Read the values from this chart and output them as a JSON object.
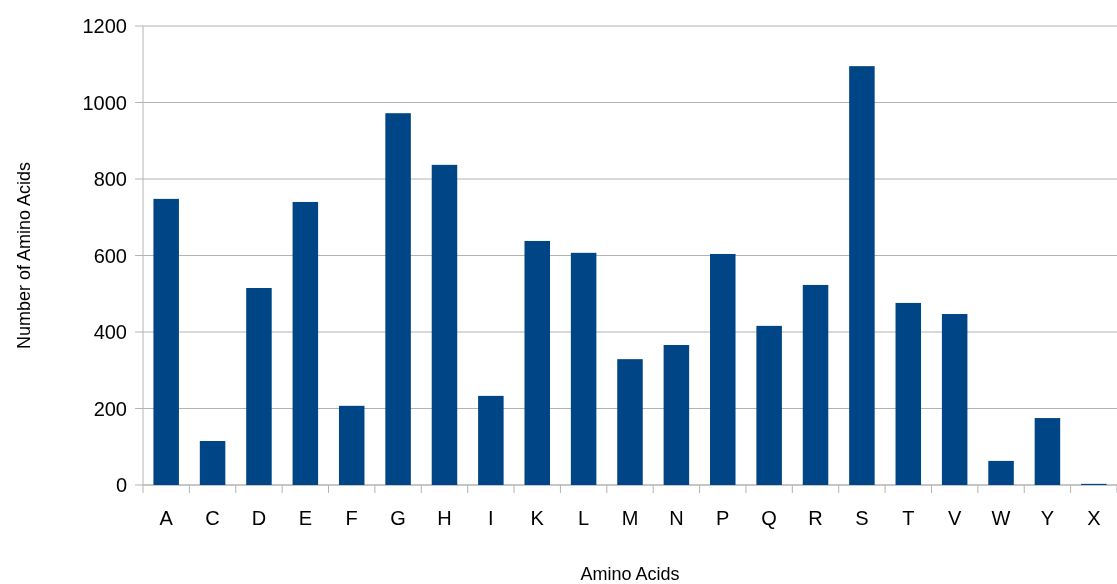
{
  "chart_data": {
    "type": "bar",
    "xlabel": "Amino Acids",
    "ylabel": "Number of Amino Acids",
    "categories": [
      "A",
      "C",
      "D",
      "E",
      "F",
      "G",
      "H",
      "I",
      "K",
      "L",
      "M",
      "N",
      "P",
      "Q",
      "R",
      "S",
      "T",
      "V",
      "W",
      "Y",
      "X"
    ],
    "values": [
      748,
      115,
      515,
      740,
      207,
      972,
      837,
      233,
      638,
      607,
      329,
      366,
      604,
      416,
      523,
      1095,
      476,
      447,
      63,
      175,
      3
    ],
    "color": "#004586",
    "ylim": [
      0,
      1200
    ],
    "yticks": [
      0,
      200,
      400,
      600,
      800,
      1000,
      1200
    ],
    "grid": "y"
  }
}
